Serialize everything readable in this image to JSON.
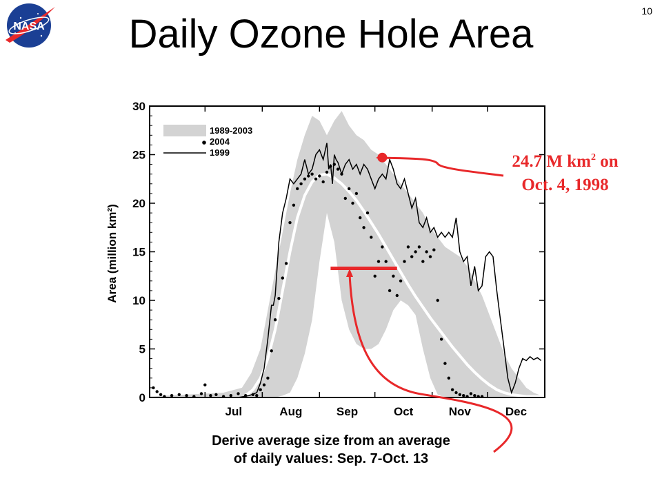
{
  "slide": {
    "title": "Daily Ozone Hole Area",
    "number": "10",
    "caption_line1": "Derive average size from an average",
    "caption_line2": "of daily values: Sep. 7-Oct. 13",
    "logo_text": "NASA"
  },
  "annotation": {
    "line1_value": "24.7 M km",
    "line1_sup": "2",
    "line1_suffix": " on",
    "line2": "Oct. 4, 1998"
  },
  "colors": {
    "band": "#d3d3d3",
    "mean_line": "#ffffff",
    "accent_red": "#e8282a",
    "logo_blue": "#1b3f94"
  },
  "chart_data": {
    "type": "area",
    "xlabel": "",
    "ylabel": "Area (million km²)",
    "ylim": [
      0,
      30
    ],
    "y_ticks": [
      0,
      5,
      10,
      15,
      20,
      25,
      30
    ],
    "y_tick_labels": [
      "0",
      "5",
      "10",
      "15",
      "20",
      "25",
      "30"
    ],
    "x_tick_labels": [
      "Jul",
      "Aug",
      "Sep",
      "Oct",
      "Nov",
      "Dec"
    ],
    "x_axis_units": "days since Jun 1",
    "xlim": [
      0,
      214
    ],
    "x_tick_positions": [
      30,
      61,
      92,
      122,
      153,
      183
    ],
    "grid": false,
    "legend": {
      "placement": "top-left",
      "entries": [
        {
          "label": "1989-2003",
          "style": "band"
        },
        {
          "label": "2004",
          "style": "dots"
        },
        {
          "label": "1999",
          "style": "line"
        }
      ]
    },
    "series": [
      {
        "name": "1989-2003",
        "kind": "band",
        "x": [
          0,
          20,
          40,
          50,
          55,
          60,
          64,
          68,
          72,
          76,
          80,
          84,
          88,
          92,
          96,
          100,
          104,
          108,
          112,
          116,
          120,
          124,
          128,
          132,
          136,
          140,
          144,
          148,
          152,
          156,
          160,
          164,
          168,
          172,
          176,
          180,
          184,
          188,
          192,
          196,
          200,
          204,
          208,
          212
        ],
        "upper": [
          0.1,
          0.3,
          0.5,
          1.0,
          2.5,
          5.0,
          9.0,
          13.0,
          17.0,
          21.0,
          24.5,
          27.0,
          29.0,
          28.5,
          27.0,
          28.5,
          29.5,
          28.0,
          27.0,
          26.5,
          25.5,
          25.0,
          24.0,
          23.0,
          22.0,
          21.0,
          20.0,
          19.0,
          17.5,
          16.5,
          15.5,
          15.0,
          14.5,
          13.5,
          12.0,
          10.5,
          8.5,
          6.5,
          4.5,
          3.0,
          2.0,
          1.0,
          0.5,
          0.2
        ],
        "lower": [
          0,
          0,
          0,
          0,
          0,
          0,
          0,
          0,
          0.2,
          0.5,
          2.0,
          4.5,
          8.0,
          14.0,
          19.0,
          16.0,
          10.0,
          7.0,
          5.5,
          5.0,
          5.0,
          5.5,
          7.0,
          9.0,
          10.0,
          9.5,
          8.5,
          5.0,
          2.0,
          0.3,
          0,
          0,
          0,
          0,
          0,
          0,
          0,
          0,
          0,
          0,
          0,
          0,
          0,
          0
        ]
      },
      {
        "name": "mean",
        "kind": "line",
        "x": [
          52,
          56,
          60,
          64,
          68,
          72,
          76,
          80,
          84,
          88,
          92,
          96,
          100,
          104,
          108,
          112,
          116,
          120,
          124,
          128,
          132,
          136,
          140,
          144,
          148,
          152,
          156,
          160,
          164,
          168,
          172,
          176,
          180,
          184,
          188,
          192,
          196,
          200,
          204,
          208,
          212
        ],
        "y": [
          0.2,
          0.8,
          2.0,
          4.0,
          7.0,
          11.0,
          15.0,
          18.5,
          20.8,
          22.2,
          22.9,
          23.0,
          22.6,
          22.0,
          21.2,
          20.3,
          19.2,
          18.0,
          16.8,
          15.5,
          14.2,
          12.9,
          11.6,
          10.4,
          9.3,
          8.2,
          7.2,
          6.2,
          5.2,
          4.3,
          3.4,
          2.6,
          1.9,
          1.3,
          0.8,
          0.5,
          0.3,
          0.2,
          0.1,
          0.1,
          0.1
        ]
      },
      {
        "name": "1999",
        "kind": "line",
        "x": [
          40,
          48,
          54,
          58,
          60,
          62,
          64,
          66,
          67,
          68,
          70,
          72,
          74,
          76,
          78,
          80,
          82,
          84,
          86,
          88,
          90,
          92,
          94,
          96,
          97,
          98,
          99,
          100,
          101,
          102,
          104,
          106,
          108,
          110,
          112,
          114,
          116,
          118,
          120,
          122,
          124,
          126,
          128,
          130,
          132,
          134,
          136,
          138,
          140,
          142,
          144,
          146,
          148,
          150,
          152,
          154,
          156,
          158,
          160,
          162,
          164,
          166,
          168,
          170,
          172,
          174,
          176,
          178,
          180,
          182,
          184,
          186,
          188,
          190,
          192,
          194,
          196,
          198,
          200,
          202,
          204,
          206,
          208,
          210,
          212
        ],
        "y": [
          0,
          0,
          0.2,
          0.5,
          1.5,
          3.0,
          6.0,
          9.5,
          9.5,
          10.5,
          16.0,
          19.0,
          20.5,
          22.5,
          22.0,
          22.5,
          23.0,
          24.5,
          23.0,
          23.5,
          25.0,
          25.5,
          24.5,
          26.2,
          23.5,
          24.0,
          22.0,
          25.0,
          24.5,
          24.2,
          23.0,
          24.0,
          24.5,
          23.5,
          24.0,
          23.0,
          24.0,
          23.5,
          22.5,
          21.5,
          22.5,
          23.0,
          22.5,
          24.5,
          23.5,
          22.0,
          21.5,
          22.5,
          21.0,
          19.5,
          20.5,
          18.0,
          17.5,
          18.5,
          17.0,
          17.5,
          16.5,
          17.0,
          16.5,
          17.0,
          16.5,
          18.5,
          15.0,
          14.0,
          14.5,
          11.5,
          13.5,
          11.0,
          11.5,
          14.5,
          15.0,
          14.5,
          11.0,
          8.0,
          5.0,
          2.0,
          0.5,
          1.5,
          3.0,
          4.0,
          3.8,
          4.2,
          3.9,
          4.1,
          3.8
        ]
      },
      {
        "name": "2004",
        "kind": "scatter",
        "x": [
          2,
          4,
          6,
          8,
          12,
          16,
          20,
          24,
          28,
          30,
          33,
          36,
          40,
          44,
          48,
          52,
          56,
          58,
          60,
          62,
          64,
          66,
          68,
          70,
          72,
          74,
          76,
          78,
          80,
          82,
          84,
          86,
          88,
          90,
          92,
          94,
          96,
          98,
          100,
          102,
          104,
          106,
          108,
          110,
          112,
          114,
          116,
          118,
          120,
          122,
          124,
          126,
          128,
          130,
          132,
          134,
          136,
          138,
          140,
          142,
          144,
          146,
          148,
          150,
          152,
          154,
          156,
          158,
          160,
          162,
          164,
          166,
          168,
          170,
          172,
          174,
          176,
          178,
          180
        ],
        "y": [
          1.0,
          0.6,
          0.3,
          0.1,
          0.2,
          0.3,
          0.2,
          0.1,
          0.4,
          1.3,
          0.2,
          0.3,
          0.1,
          0.2,
          0.4,
          0.2,
          0.3,
          0.2,
          0.8,
          1.3,
          2.0,
          4.8,
          8.0,
          10.2,
          12.3,
          13.8,
          18.0,
          19.8,
          21.5,
          22.0,
          22.5,
          22.8,
          23.0,
          22.5,
          22.8,
          22.2,
          23.2,
          23.8,
          24.0,
          23.5,
          23.0,
          20.5,
          21.5,
          20.0,
          21.0,
          18.5,
          17.5,
          19.0,
          16.5,
          12.5,
          14.0,
          15.5,
          14.0,
          11.0,
          12.5,
          10.5,
          12.0,
          14.0,
          15.5,
          14.5,
          15.0,
          15.5,
          14.0,
          15.0,
          14.5,
          15.2,
          10.0,
          6.0,
          3.5,
          2.0,
          0.8,
          0.5,
          0.3,
          0.2,
          0.1,
          0.4,
          0.2,
          0.1,
          0.1
        ]
      },
      {
        "name": "Oct. 4, 1998",
        "kind": "marker",
        "x": [
          126
        ],
        "y": [
          24.7
        ]
      }
    ],
    "averaging_window": {
      "x_start": 98,
      "x_end": 134,
      "y": 13.3
    }
  }
}
